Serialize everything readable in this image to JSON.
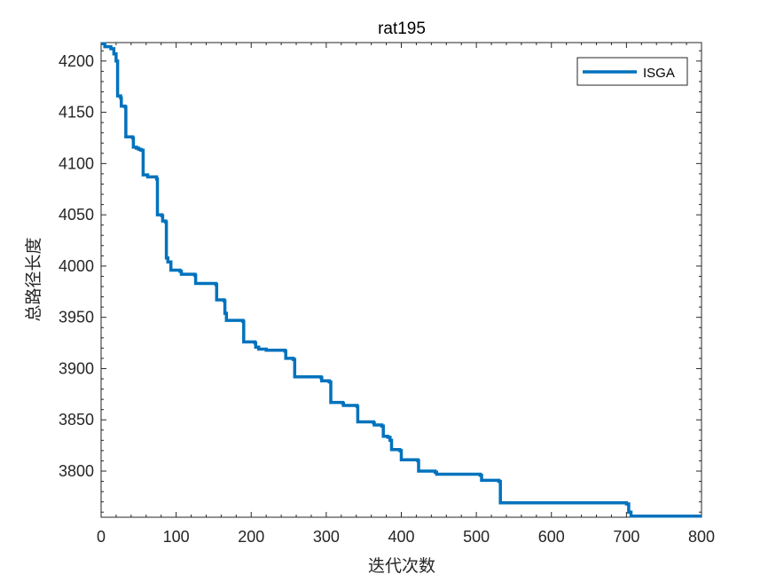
{
  "chart_data": {
    "type": "line",
    "title": "rat195",
    "xlabel": "迭代次数",
    "ylabel": "总路径长度",
    "xlim": [
      0,
      800
    ],
    "ylim": [
      3755,
      4218
    ],
    "xticks": [
      0,
      100,
      200,
      300,
      400,
      500,
      600,
      700,
      800
    ],
    "yticks": [
      3800,
      3850,
      3900,
      3950,
      4000,
      4050,
      4100,
      4150,
      4200
    ],
    "grid": false,
    "legend_position": "top-right",
    "series": [
      {
        "name": "ISGA",
        "color": "#0072BD",
        "step": true,
        "points": [
          [
            0,
            4217
          ],
          [
            5,
            4214
          ],
          [
            13,
            4212
          ],
          [
            17,
            4207
          ],
          [
            20,
            4200
          ],
          [
            22,
            4166
          ],
          [
            26,
            4164
          ],
          [
            27,
            4156
          ],
          [
            32,
            4155
          ],
          [
            33,
            4126
          ],
          [
            42,
            4125
          ],
          [
            43,
            4116
          ],
          [
            47,
            4115
          ],
          [
            50,
            4114
          ],
          [
            53,
            4113
          ],
          [
            56,
            4089
          ],
          [
            62,
            4087
          ],
          [
            74,
            4085
          ],
          [
            75,
            4050
          ],
          [
            81,
            4049
          ],
          [
            82,
            4044
          ],
          [
            86,
            4043
          ],
          [
            87,
            4008
          ],
          [
            89,
            4004
          ],
          [
            93,
            3996
          ],
          [
            105,
            3995
          ],
          [
            107,
            3992
          ],
          [
            125,
            3991
          ],
          [
            126,
            3983
          ],
          [
            153,
            3982
          ],
          [
            154,
            3967
          ],
          [
            164,
            3966
          ],
          [
            165,
            3954
          ],
          [
            167,
            3947
          ],
          [
            189,
            3946
          ],
          [
            190,
            3926
          ],
          [
            205,
            3925
          ],
          [
            206,
            3921
          ],
          [
            210,
            3919
          ],
          [
            220,
            3918
          ],
          [
            245,
            3917
          ],
          [
            246,
            3910
          ],
          [
            256,
            3909
          ],
          [
            258,
            3892
          ],
          [
            293,
            3891
          ],
          [
            294,
            3888
          ],
          [
            304,
            3887
          ],
          [
            306,
            3867
          ],
          [
            322,
            3866
          ],
          [
            323,
            3864
          ],
          [
            341,
            3863
          ],
          [
            342,
            3848
          ],
          [
            363,
            3847
          ],
          [
            364,
            3845
          ],
          [
            374,
            3844
          ],
          [
            376,
            3834
          ],
          [
            382,
            3833
          ],
          [
            385,
            3830
          ],
          [
            387,
            3821
          ],
          [
            398,
            3820
          ],
          [
            400,
            3811
          ],
          [
            422,
            3810
          ],
          [
            423,
            3800
          ],
          [
            445,
            3799
          ],
          [
            447,
            3797
          ],
          [
            505,
            3796
          ],
          [
            507,
            3791
          ],
          [
            530,
            3790
          ],
          [
            532,
            3769
          ],
          [
            700,
            3768
          ],
          [
            703,
            3760
          ],
          [
            706,
            3756
          ],
          [
            800,
            3756
          ]
        ]
      }
    ]
  }
}
